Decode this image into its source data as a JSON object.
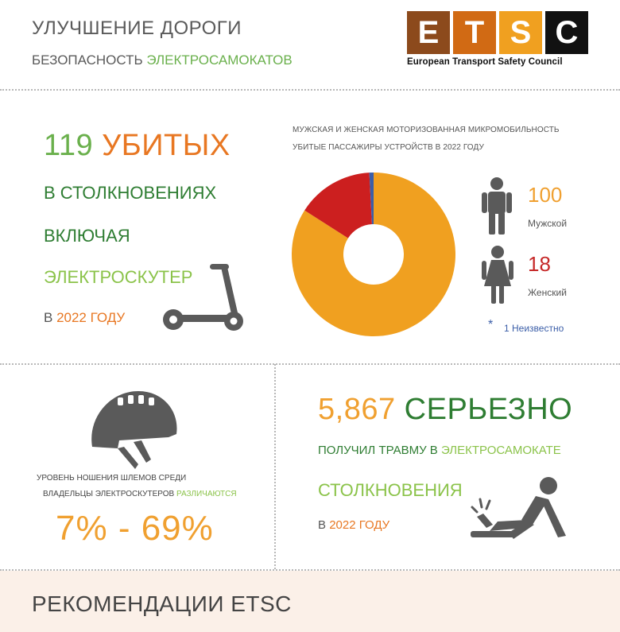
{
  "header": {
    "title": "УЛУЧШЕНИЕ ДОРОГИ",
    "subtitle_prefix": "БЕЗОПАСНОСТЬ ",
    "subtitle_highlight": "ЭЛЕКТРОСАМОКАТОВ"
  },
  "logo": {
    "letters": [
      "E",
      "T",
      "S",
      "C"
    ],
    "colors": [
      "#8c4a1c",
      "#d16a14",
      "#f0a020",
      "#111111"
    ],
    "name": "European Transport Safety Council"
  },
  "deaths": {
    "number": "119",
    "word": "УБИТЫХ",
    "line2_a": "В ",
    "line2_b": "СТОЛКНОВЕНИЯХ",
    "line3": "ВКЛЮЧАЯ",
    "line4": "ЭЛЕКТРОСКУТЕР",
    "line5_a": "В ",
    "line5_b": "2022 ГОДУ"
  },
  "chart_data": {
    "type": "pie",
    "title": "МУЖСКАЯ И ЖЕНСКАЯ МОТОРИЗОВАННАЯ МИКРОМОБИЛЬНОСТЬ",
    "subtitle": "УБИТЫЕ ПАССАЖИРЫ УСТРОЙСТВ В 2022 ГОДУ",
    "categories": [
      "Мужской",
      "Женский",
      "Неизвестно"
    ],
    "values": [
      100,
      18,
      1
    ],
    "colors": [
      "#f0a020",
      "#cc1f1f",
      "#3b5ea8"
    ]
  },
  "legend": {
    "male_value": "100",
    "male_label": "Мужской",
    "female_value": "18",
    "female_label": "Женский",
    "unknown_marker": "*",
    "unknown_label": "1 Неизвестно"
  },
  "helmet": {
    "text1": "УРОВЕНЬ НОШЕНИЯ ШЛЕМОВ СРЕДИ",
    "text2_a": "ВЛАДЕЛЬЦЫ ЭЛЕКТРОСКУТЕРОВ ",
    "text2_b": "РАЗЛИЧАЮТСЯ",
    "range": "7% - 69%"
  },
  "injuries": {
    "number": "5,867",
    "word": "СЕРЬЕЗНО",
    "line2_a": "ПОЛУЧИЛ ТРАВМУ В ",
    "line2_b": "ЭЛЕКТРОСАМОКАТЕ",
    "line3": "СТОЛКНОВЕНИЯ",
    "line4_a": "В ",
    "line4_b": "2022 ГОДУ"
  },
  "recommendations": {
    "title": "РЕКОМЕНДАЦИИ ETSC"
  }
}
